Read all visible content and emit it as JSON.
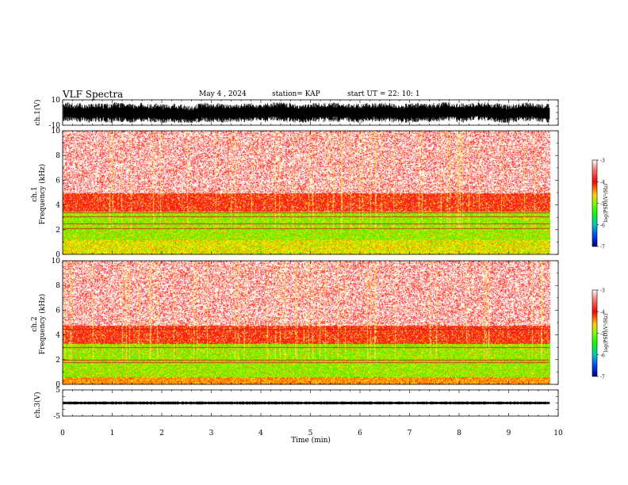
{
  "header": {
    "title": "VLF Spectra",
    "date": "May 4  , 2024",
    "station": "station= KAP",
    "start": "start  UT  =   22: 10: 1"
  },
  "chart_data": [
    {
      "type": "line",
      "panel": "ch1-voltage",
      "ylabel": "ch.1(V)",
      "ylim": [
        -10,
        10
      ],
      "yticks": [
        "10",
        "-10"
      ],
      "xlim": [
        0,
        10
      ],
      "trace_color": "#000000",
      "trace_range": [
        -8,
        8
      ]
    },
    {
      "type": "heatmap",
      "panel": "ch1-spectrogram",
      "ylabel": "ch.1",
      "ylabel2": "Frequency  (kHz)",
      "ylim": [
        0,
        10
      ],
      "yticks": [
        "0",
        "2",
        "4",
        "6",
        "8",
        "10"
      ],
      "xlim": [
        0,
        10
      ],
      "data_end_min": 9.83,
      "colorbar": {
        "label": "log(PSD)(V²/Hz)",
        "range": [
          -7,
          -3
        ],
        "ticks": [
          "-3",
          "-4",
          "-5",
          "-6",
          "-7"
        ]
      },
      "bands_khz": [
        {
          "from": 0,
          "to": 1.2,
          "level": "green-yellow"
        },
        {
          "from": 1.2,
          "to": 3.5,
          "level": "green"
        },
        {
          "from": 3.5,
          "to": 5.0,
          "level": "red"
        },
        {
          "from": 5.0,
          "to": 10,
          "level": "light-red"
        }
      ],
      "lines_khz": [
        2.1,
        2.5,
        3.1,
        3.4
      ]
    },
    {
      "type": "heatmap",
      "panel": "ch2-spectrogram",
      "ylabel": "ch.2",
      "ylabel2": "Frequency  (kHz)",
      "ylim": [
        0,
        10
      ],
      "yticks": [
        "0",
        "2",
        "4",
        "6",
        "8",
        "10"
      ],
      "xlim": [
        0,
        10
      ],
      "data_end_min": 9.83,
      "colorbar": {
        "label": "log(PSD)(V²/Hz)",
        "range": [
          -7,
          -3
        ],
        "ticks": [
          "-3",
          "-4",
          "-5",
          "-6",
          "-7"
        ]
      },
      "bands_khz": [
        {
          "from": 0,
          "to": 0.6,
          "level": "red-yellow"
        },
        {
          "from": 0.6,
          "to": 3.3,
          "level": "green"
        },
        {
          "from": 3.3,
          "to": 4.8,
          "level": "red"
        },
        {
          "from": 4.8,
          "to": 10,
          "level": "light-red"
        }
      ],
      "lines_khz": [
        1.8,
        2.0,
        3.0,
        4.5
      ]
    },
    {
      "type": "line",
      "panel": "ch3-voltage",
      "ylabel": "ch.3(V)",
      "ylim": [
        -5,
        5
      ],
      "yticks": [
        "5",
        "-5"
      ],
      "xlim": [
        0,
        10
      ],
      "trace_color": "#000000",
      "trace_level": 0,
      "trace_range": [
        -0.6,
        0.6
      ]
    }
  ],
  "x_axis": {
    "label": "Time  (min)",
    "ticks": [
      "0",
      "1",
      "2",
      "3",
      "4",
      "5",
      "6",
      "7",
      "8",
      "9",
      "10"
    ]
  },
  "colors": {
    "low": "#00007f",
    "mid": "#00ff00",
    "high": "#ff0000",
    "very_high": "#ffffff"
  }
}
